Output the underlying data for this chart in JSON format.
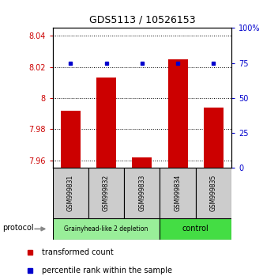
{
  "title": "GDS5113 / 10526153",
  "samples": [
    "GSM999831",
    "GSM999832",
    "GSM999833",
    "GSM999834",
    "GSM999835"
  ],
  "bar_values": [
    7.992,
    8.013,
    7.962,
    8.025,
    7.994
  ],
  "dot_values": [
    75,
    75,
    75,
    75,
    75
  ],
  "ylim_left": [
    7.955,
    8.045
  ],
  "ylim_right": [
    0,
    100
  ],
  "yticks_left": [
    7.96,
    7.98,
    8.0,
    8.02,
    8.04
  ],
  "yticks_right": [
    0,
    25,
    50,
    75,
    100
  ],
  "ytick_labels_left": [
    "7.96",
    "7.98",
    "8",
    "8.02",
    "8.04"
  ],
  "ytick_labels_right": [
    "0",
    "25",
    "50",
    "75",
    "100%"
  ],
  "bar_color": "#cc0000",
  "dot_color": "#0000cc",
  "bar_bottom": 7.955,
  "groups": [
    {
      "label": "Grainyhead-like 2 depletion",
      "indices": [
        0,
        1,
        2
      ],
      "color": "#99ee99"
    },
    {
      "label": "control",
      "indices": [
        3,
        4
      ],
      "color": "#44dd44"
    }
  ],
  "protocol_label": "protocol",
  "legend_bar_label": "transformed count",
  "legend_dot_label": "percentile rank within the sample",
  "background_color": "#ffffff",
  "tick_area_color": "#cccccc",
  "arrow_color": "#888888"
}
